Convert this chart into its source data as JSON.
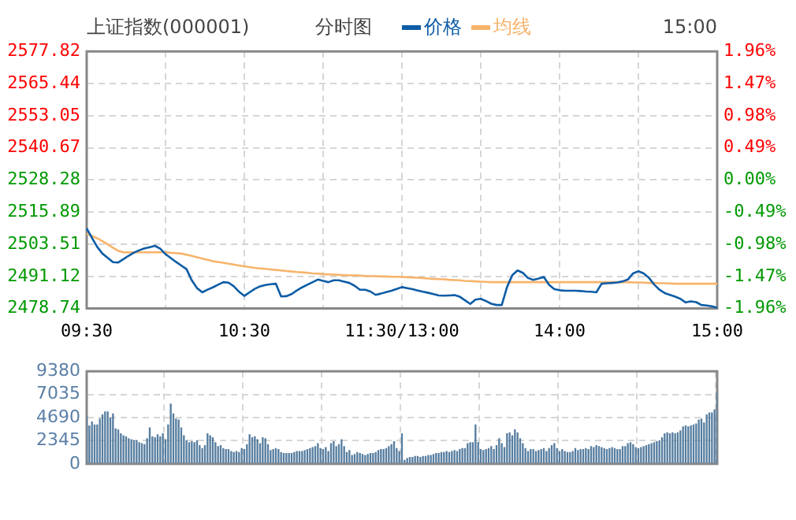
{
  "chart_data": [
    {
      "type": "line",
      "title": "上证指数(000001)",
      "subtitle": "分时图",
      "annotations": [
        "15:00"
      ],
      "legend": "top",
      "categories": [
        "09:30",
        null,
        null,
        null,
        null,
        null,
        null,
        null,
        null,
        null,
        null,
        null,
        null,
        null,
        null,
        null,
        null,
        null,
        null,
        null,
        null,
        null,
        null,
        null,
        null,
        null,
        null,
        null,
        null,
        null,
        "10:30",
        null,
        null,
        null,
        null,
        null,
        null,
        null,
        null,
        null,
        null,
        null,
        null,
        null,
        null,
        null,
        null,
        null,
        null,
        null,
        null,
        null,
        null,
        null,
        null,
        null,
        null,
        null,
        null,
        null,
        "11:30/13:00",
        null,
        null,
        null,
        null,
        null,
        null,
        null,
        null,
        null,
        null,
        null,
        null,
        null,
        null,
        null,
        null,
        null,
        null,
        null,
        null,
        null,
        null,
        null,
        null,
        null,
        null,
        null,
        null,
        null,
        "14:00",
        null,
        null,
        null,
        null,
        null,
        null,
        null,
        null,
        null,
        null,
        null,
        null,
        null,
        null,
        null,
        null,
        null,
        null,
        null,
        null,
        null,
        null,
        null,
        null,
        null,
        null,
        null,
        null,
        null,
        "15:00"
      ],
      "ylim": [
        2478.74,
        2577.82
      ],
      "yticks": [
        2478.74,
        2491.12,
        2503.51,
        2515.89,
        2528.28,
        2540.67,
        2553.05,
        2565.44,
        2577.82
      ],
      "y2lim": [
        -1.96,
        1.96
      ],
      "y2ticks": [
        {
          "value": -1.96,
          "label": "-1.96%"
        },
        {
          "value": -1.47,
          "label": "-1.47%"
        },
        {
          "value": -0.98,
          "label": "-0.98%"
        },
        {
          "value": -0.49,
          "label": "-0.49%"
        },
        {
          "value": 0,
          "label": "0.00%"
        },
        {
          "value": 0.49,
          "label": "0.49%"
        },
        {
          "value": 0.98,
          "label": "0.98%"
        },
        {
          "value": 1.47,
          "label": "1.47%"
        },
        {
          "value": 1.96,
          "label": "1.96%"
        }
      ],
      "grid": true,
      "series": [
        {
          "name": "价格",
          "color": "#0d5ca6",
          "values": [
            2509.6,
            2506.0,
            2502.5,
            2499.9,
            2498.3,
            2496.6,
            2496.5,
            2497.8,
            2499.1,
            2500.3,
            2501.2,
            2501.9,
            2502.4,
            2502.9,
            2501.8,
            2499.7,
            2498.2,
            2496.7,
            2495.3,
            2493.9,
            2489.6,
            2486.6,
            2485.0,
            2486.0,
            2486.9,
            2487.9,
            2488.9,
            2488.7,
            2487.3,
            2485.2,
            2483.6,
            2485.0,
            2486.3,
            2487.3,
            2487.8,
            2488.1,
            2488.3,
            2483.4,
            2483.5,
            2484.3,
            2485.7,
            2486.9,
            2487.9,
            2488.9,
            2489.9,
            2489.4,
            2488.9,
            2489.6,
            2489.6,
            2489.1,
            2488.6,
            2487.5,
            2486.0,
            2486.0,
            2485.3,
            2484.0,
            2484.5,
            2485.1,
            2485.6,
            2486.3,
            2487.0,
            2486.6,
            2486.2,
            2485.7,
            2485.2,
            2484.8,
            2484.3,
            2483.8,
            2483.7,
            2483.8,
            2483.9,
            2483.3,
            2481.9,
            2480.5,
            2482.2,
            2482.5,
            2481.6,
            2480.6,
            2480.1,
            2480.1,
            2487.0,
            2491.6,
            2493.4,
            2492.5,
            2490.5,
            2489.8,
            2490.3,
            2490.9,
            2487.9,
            2486.2,
            2485.8,
            2485.6,
            2485.6,
            2485.6,
            2485.5,
            2485.3,
            2485.2,
            2485.0,
            2488.3,
            2488.5,
            2488.6,
            2488.8,
            2489.2,
            2489.9,
            2492.3,
            2493.1,
            2492.3,
            2490.6,
            2488.0,
            2486.0,
            2484.7,
            2484.0,
            2483.3,
            2482.5,
            2481.1,
            2481.5,
            2481.2,
            2480.1,
            2479.9,
            2479.6,
            2479.0
          ]
        },
        {
          "name": "均线",
          "color": "#f7b36b",
          "values": [
            2507.6,
            2506.7,
            2505.8,
            2504.7,
            2503.5,
            2502.2,
            2501.0,
            2500.4,
            2500.4,
            2500.4,
            2500.4,
            2500.4,
            2500.4,
            2500.4,
            2500.4,
            2500.4,
            2500.2,
            2500.1,
            2499.9,
            2499.5,
            2499.0,
            2498.5,
            2498.0,
            2497.5,
            2497.0,
            2496.7,
            2496.4,
            2496.0,
            2495.7,
            2495.3,
            2495.0,
            2494.7,
            2494.4,
            2494.2,
            2494.0,
            2493.8,
            2493.6,
            2493.4,
            2493.2,
            2493.0,
            2492.8,
            2492.7,
            2492.5,
            2492.3,
            2492.2,
            2492.0,
            2491.9,
            2491.8,
            2491.7,
            2491.6,
            2491.5,
            2491.5,
            2491.4,
            2491.3,
            2491.2,
            2491.2,
            2491.1,
            2491.1,
            2491.0,
            2491.0,
            2490.9,
            2490.8,
            2490.7,
            2490.6,
            2490.5,
            2490.3,
            2490.2,
            2490.1,
            2490.0,
            2489.8,
            2489.7,
            2489.6,
            2489.4,
            2489.3,
            2489.2,
            2489.1,
            2489.0,
            2488.9,
            2488.9,
            2488.9,
            2488.9,
            2488.9,
            2488.9,
            2488.9,
            2488.9,
            2488.9,
            2488.9,
            2488.9,
            2488.9,
            2488.9,
            2488.9,
            2488.9,
            2488.9,
            2488.9,
            2488.9,
            2488.9,
            2488.9,
            2488.9,
            2488.9,
            2488.9,
            2488.9,
            2488.9,
            2488.9,
            2488.9,
            2488.8,
            2488.8,
            2488.7,
            2488.6,
            2488.6,
            2488.5,
            2488.5,
            2488.4,
            2488.3,
            2488.3,
            2488.3,
            2488.3,
            2488.3,
            2488.3,
            2488.3,
            2488.3,
            2488.3
          ]
        }
      ]
    },
    {
      "type": "bar",
      "color": "#567d9f",
      "grid": true,
      "tick_labels": "y",
      "categories": [
        null,
        null,
        null,
        null,
        null,
        null,
        null,
        null,
        null,
        null,
        null,
        null,
        null,
        null,
        null,
        null,
        null,
        null,
        null,
        null,
        null,
        null,
        null,
        null,
        null,
        null,
        null,
        null,
        null,
        null,
        null,
        null,
        null,
        null,
        null,
        null,
        null,
        null,
        null,
        null,
        null,
        null,
        null,
        null,
        null,
        null,
        null,
        null,
        null,
        null,
        null,
        null,
        null,
        null,
        null,
        null,
        null,
        null,
        null,
        null,
        null,
        null,
        null,
        null,
        null,
        null,
        null,
        null,
        null,
        null,
        null,
        null,
        null,
        null,
        null,
        null,
        null,
        null,
        null,
        null,
        null,
        null,
        null,
        null,
        null,
        null,
        null,
        null,
        null,
        null,
        null,
        null,
        null,
        null,
        null,
        null,
        null,
        null,
        null,
        null,
        null,
        null,
        null,
        null,
        null,
        null,
        null,
        null,
        null,
        null,
        null,
        null,
        null,
        null,
        null,
        null,
        null,
        null,
        null,
        null,
        null,
        null,
        null,
        null,
        null,
        null,
        null,
        null,
        null,
        null,
        null,
        null,
        null,
        null,
        null,
        null,
        null,
        null,
        null,
        null,
        null,
        null,
        null,
        null,
        null,
        null,
        null,
        null,
        null,
        null,
        null,
        null,
        null,
        null,
        null,
        null,
        null,
        null,
        null,
        null,
        null,
        null,
        null,
        null,
        null,
        null,
        null,
        null,
        null,
        null,
        null,
        null,
        null,
        null,
        null,
        null,
        null,
        null,
        null,
        null,
        null,
        null,
        null,
        null,
        null,
        null,
        null,
        null,
        null,
        null,
        null,
        null,
        null,
        null,
        null,
        null,
        null,
        null,
        null,
        null,
        null,
        null,
        null,
        null,
        null,
        null,
        null,
        null,
        null,
        null,
        null,
        null,
        null,
        null,
        null,
        null,
        null,
        null,
        null,
        null,
        null,
        null,
        null,
        null,
        null,
        null,
        null,
        null,
        null,
        null,
        null,
        null,
        null,
        null,
        null,
        null,
        null,
        null,
        null,
        null,
        null
      ],
      "ylim": [
        0,
        9380
      ],
      "yticks": [
        0,
        2345,
        4690,
        7035,
        9380
      ],
      "values": [
        4800,
        3900,
        4300,
        4000,
        4000,
        4600,
        5000,
        5300,
        5300,
        4700,
        5100,
        3600,
        3500,
        3100,
        2900,
        2800,
        2600,
        2500,
        2400,
        2400,
        2200,
        2100,
        2000,
        2600,
        3700,
        2800,
        2700,
        3000,
        2800,
        3100,
        2500,
        4000,
        6100,
        5100,
        4600,
        4500,
        3700,
        2900,
        2400,
        2200,
        2300,
        2200,
        2400,
        1900,
        1600,
        1900,
        3100,
        2900,
        2700,
        2200,
        1800,
        1900,
        1600,
        1500,
        1500,
        1300,
        1200,
        1300,
        1200,
        1600,
        1500,
        2000,
        3000,
        2700,
        2800,
        2500,
        2100,
        2700,
        2600,
        2000,
        1400,
        1500,
        1600,
        1500,
        1200,
        1100,
        1100,
        1100,
        1100,
        1200,
        1300,
        1300,
        1300,
        1400,
        1500,
        1600,
        1700,
        1800,
        2100,
        1600,
        1500,
        1700,
        1300,
        2100,
        2300,
        1800,
        2000,
        2500,
        1800,
        1200,
        1400,
        900,
        1000,
        1200,
        1100,
        1000,
        900,
        1000,
        1100,
        1100,
        1200,
        1400,
        1500,
        1500,
        1600,
        1800,
        2000,
        2300,
        1600,
        1300,
        3100,
        400,
        600,
        700,
        700,
        800,
        800,
        700,
        800,
        800,
        900,
        900,
        1000,
        1100,
        1100,
        1200,
        1200,
        1300,
        1200,
        1300,
        1400,
        1300,
        1500,
        1600,
        1600,
        2100,
        2200,
        2200,
        4000,
        2200,
        1500,
        1400,
        1500,
        1600,
        1800,
        1500,
        1900,
        2600,
        2100,
        1700,
        3100,
        3200,
        2900,
        3500,
        3200,
        2600,
        2100,
        1600,
        1300,
        1500,
        1500,
        1300,
        1400,
        1500,
        1600,
        1300,
        1600,
        1900,
        2100,
        1600,
        1300,
        1500,
        1300,
        1200,
        1200,
        1300,
        1600,
        1400,
        1500,
        1500,
        1600,
        1500,
        1800,
        1700,
        1900,
        1800,
        1700,
        1600,
        1500,
        1600,
        1700,
        1600,
        1500,
        1500,
        1800,
        1800,
        2100,
        2200,
        2000,
        1700,
        1600,
        1700,
        1800,
        1900,
        2000,
        2100,
        2200,
        2300,
        2400,
        2700,
        3100,
        3200,
        3100,
        3200,
        3100,
        3200,
        3400,
        3800,
        3900,
        3800,
        3900,
        4000,
        4100,
        4500,
        4600,
        4200,
        5000,
        5200,
        5200,
        5500,
        7300
      ]
    }
  ]
}
